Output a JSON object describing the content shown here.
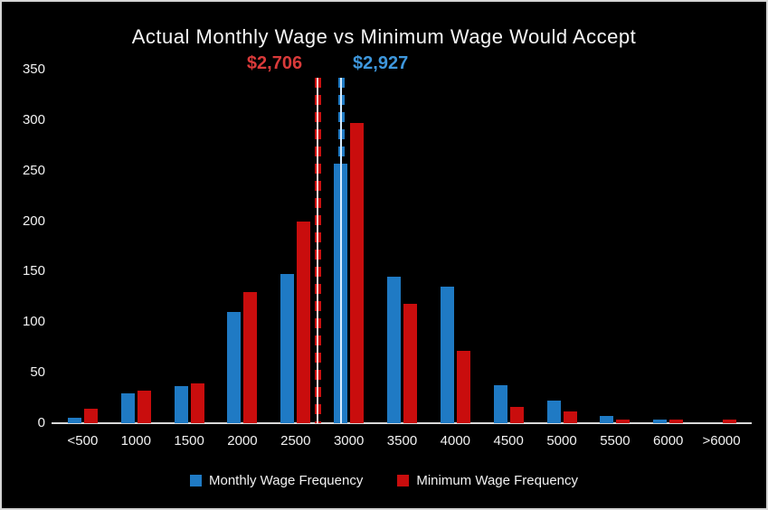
{
  "figure": {
    "background": "#000000",
    "border_color": "#d6d6d6",
    "text_color": "#f2f2f2",
    "axis_line_color": "#d9d9d9"
  },
  "chart_data": {
    "type": "bar",
    "title": "Actual Monthly Wage vs Minimum Wage Would Accept",
    "xlabel": "",
    "ylabel": "",
    "categories": [
      "<500",
      "1000",
      "1500",
      "2000",
      "2500",
      "3000",
      "3500",
      "4000",
      "4500",
      "5000",
      "5500",
      "6000",
      ">6000"
    ],
    "series": [
      {
        "name": "Monthly Wage Frequency",
        "color": "#1f7ac4",
        "values": [
          5,
          30,
          37,
          110,
          148,
          257,
          145,
          135,
          38,
          22,
          7,
          4,
          0
        ]
      },
      {
        "name": "Minimum Wage Frequency",
        "color": "#c90d0d",
        "values": [
          14,
          32,
          39,
          130,
          200,
          297,
          118,
          72,
          16,
          12,
          4,
          4,
          4
        ]
      }
    ],
    "ylim": [
      0,
      350
    ],
    "yticks": [
      0,
      50,
      100,
      150,
      200,
      250,
      300,
      350
    ],
    "grid": false,
    "legend_position": "bottom",
    "annotations": [
      {
        "label": "$2,706",
        "value": 2706,
        "color": "#c90d0d",
        "label_color": "#d93a3a",
        "core_color": "#ffd2d2",
        "align": "right",
        "style": "dashed-vertical-line"
      },
      {
        "label": "$2,927",
        "value": 2927,
        "color": "#1f7ac4",
        "label_color": "#3e97dc",
        "core_color": "#d6ecff",
        "align": "left",
        "style": "dashed-vertical-line"
      }
    ]
  }
}
